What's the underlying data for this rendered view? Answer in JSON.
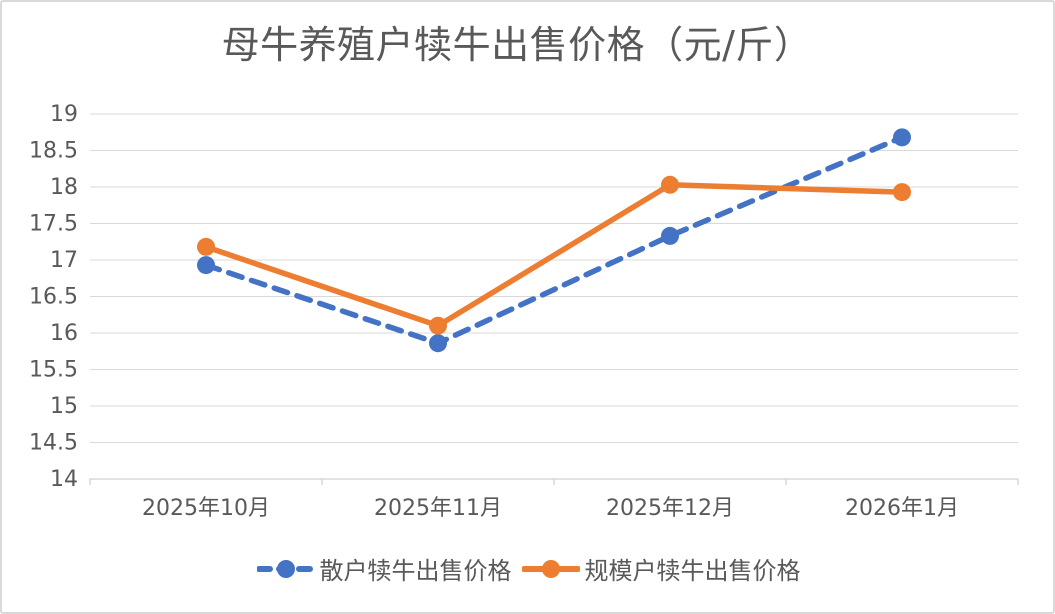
{
  "page": {
    "background": "#ffffff",
    "border_color": "#d9d9d9"
  },
  "chart_data": {
    "type": "line",
    "title": "母牛养殖户犊牛出售价格（元/斤）",
    "categories": [
      "2025年10月",
      "2025年11月",
      "2025年12月",
      "2026年1月"
    ],
    "series": [
      {
        "name": "散户犊牛出售价格",
        "values": [
          16.93,
          15.86,
          17.33,
          18.68
        ],
        "color": "#4472c4",
        "line_style": "dashed"
      },
      {
        "name": "规模户犊牛出售价格",
        "values": [
          17.18,
          16.1,
          18.03,
          17.93
        ],
        "color": "#ed7d31",
        "line_style": "solid"
      }
    ],
    "xlabel": "",
    "ylabel": "",
    "ylim": [
      14,
      19
    ],
    "ytick_step": 0.5,
    "ytick_labels": [
      "14",
      "14.5",
      "15",
      "15.5",
      "16",
      "16.5",
      "17",
      "17.5",
      "18",
      "18.5",
      "19"
    ],
    "grid": true,
    "legend_position": "bottom",
    "colors": {
      "text": "#595959",
      "grid": "#d9d9d9",
      "axis": "#c6c6c6"
    }
  }
}
